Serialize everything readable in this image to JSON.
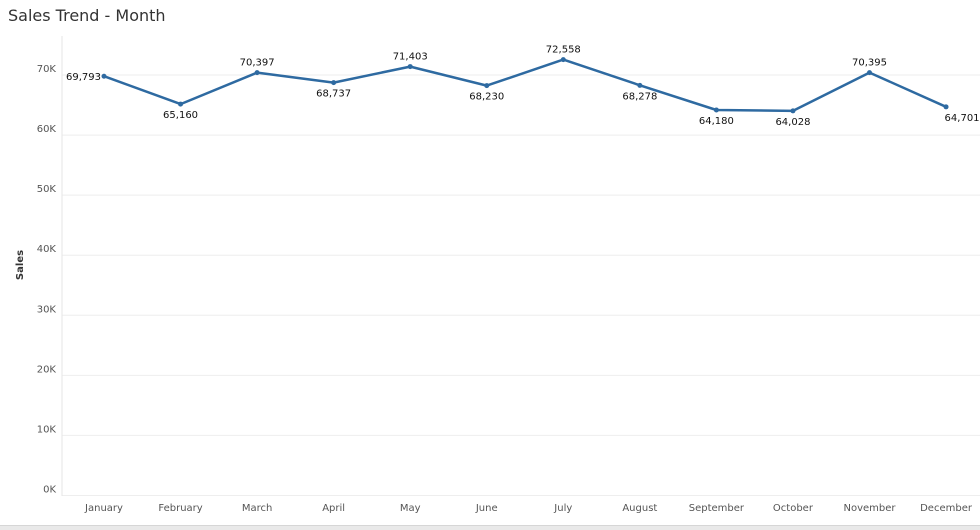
{
  "colors": {
    "line": "#2e6aa1",
    "grid": "#eeeeee",
    "axis_text": "#555555",
    "label_text": "#111111"
  },
  "chart_data": {
    "type": "line",
    "title": "Sales Trend - Month",
    "ylabel": "Sales",
    "xlabel": "",
    "categories": [
      "January",
      "February",
      "March",
      "April",
      "May",
      "June",
      "July",
      "August",
      "September",
      "October",
      "November",
      "December"
    ],
    "series": [
      {
        "values": [
          69793,
          65160,
          70397,
          68737,
          71403,
          68230,
          72558,
          68278,
          64180,
          64028,
          70395,
          64701
        ],
        "labels": [
          "69,793",
          "65,160",
          "70,397",
          "68,737",
          "71,403",
          "68,230",
          "72,558",
          "68,278",
          "64,180",
          "64,028",
          "70,395",
          "64,701"
        ]
      }
    ],
    "ylim": [
      0,
      75000
    ],
    "yticks": [
      0,
      10000,
      20000,
      30000,
      40000,
      50000,
      60000,
      70000
    ],
    "ytick_labels": [
      "0K",
      "10K",
      "20K",
      "30K",
      "40K",
      "50K",
      "60K",
      "70K"
    ],
    "grid": true,
    "legend": "none"
  }
}
